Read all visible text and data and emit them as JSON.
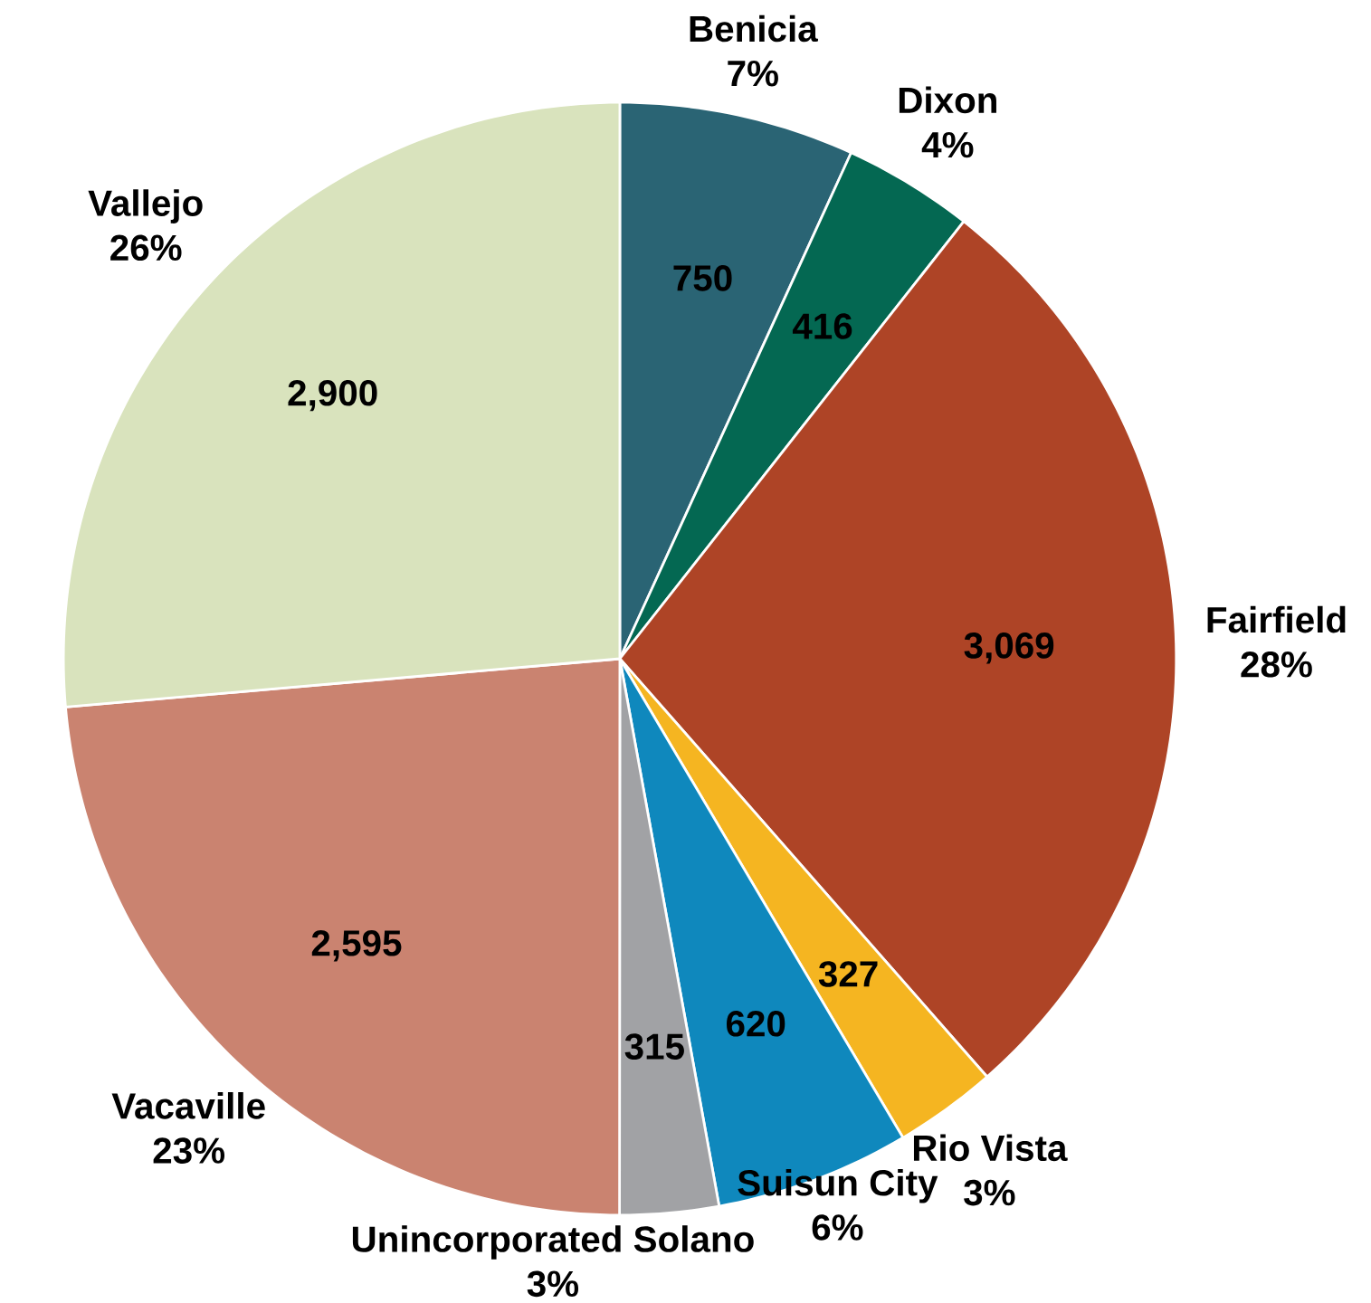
{
  "chart_data": {
    "type": "pie",
    "categories": [
      "Benicia",
      "Dixon",
      "Fairfield",
      "Rio Vista",
      "Suisun City",
      "Unincorporated Solano",
      "Vacaville",
      "Vallejo"
    ],
    "values": [
      750,
      416,
      3069,
      327,
      620,
      315,
      2595,
      2900
    ],
    "colors": [
      "#2a6474",
      "#046852",
      "#ae4426",
      "#f5b521",
      "#0f88bd",
      "#a1a2a5",
      "#ca8370",
      "#d9e3bd"
    ],
    "value_labels": [
      "750",
      "416",
      "3,069",
      "327",
      "620",
      "315",
      "2,595",
      "2,900"
    ],
    "annotations": [
      "7%",
      "4%",
      "28%",
      "3%",
      "6%",
      "3%",
      "23%",
      "26%"
    ]
  }
}
